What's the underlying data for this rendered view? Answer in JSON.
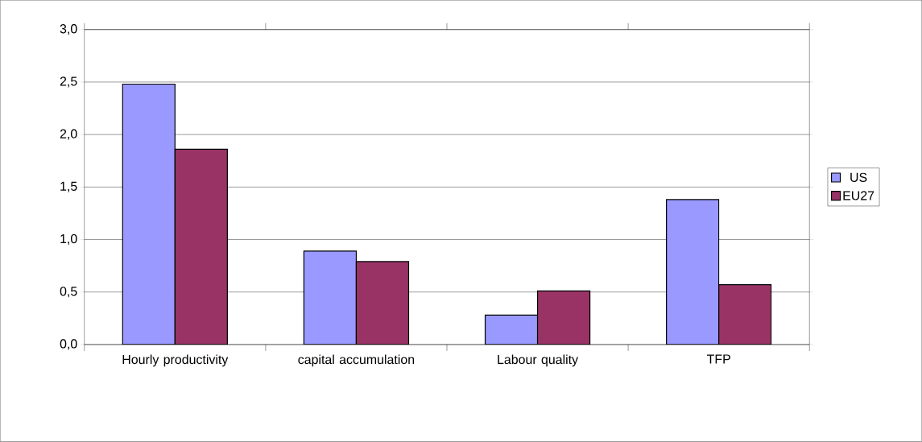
{
  "chart_data": {
    "type": "bar",
    "categories": [
      "Hourly productivity",
      "capital accumulation",
      "Labour quality",
      "TFP"
    ],
    "series": [
      {
        "name": "US",
        "color": "#9999ff",
        "values": [
          2.48,
          0.89,
          0.28,
          1.38
        ]
      },
      {
        "name": "EU27",
        "color": "#993366",
        "values": [
          1.86,
          0.79,
          0.51,
          0.57
        ]
      }
    ],
    "ylim": [
      0,
      3
    ],
    "yticks": [
      {
        "value": 0,
        "label": "0,0"
      },
      {
        "value": 0.5,
        "label": "0,5"
      },
      {
        "value": 1,
        "label": "1,0"
      },
      {
        "value": 1.5,
        "label": "1,5"
      },
      {
        "value": 2,
        "label": "2,0"
      },
      {
        "value": 2.5,
        "label": "2,5"
      },
      {
        "value": 3,
        "label": "3,0"
      }
    ],
    "grid": "y",
    "legend": "right"
  }
}
